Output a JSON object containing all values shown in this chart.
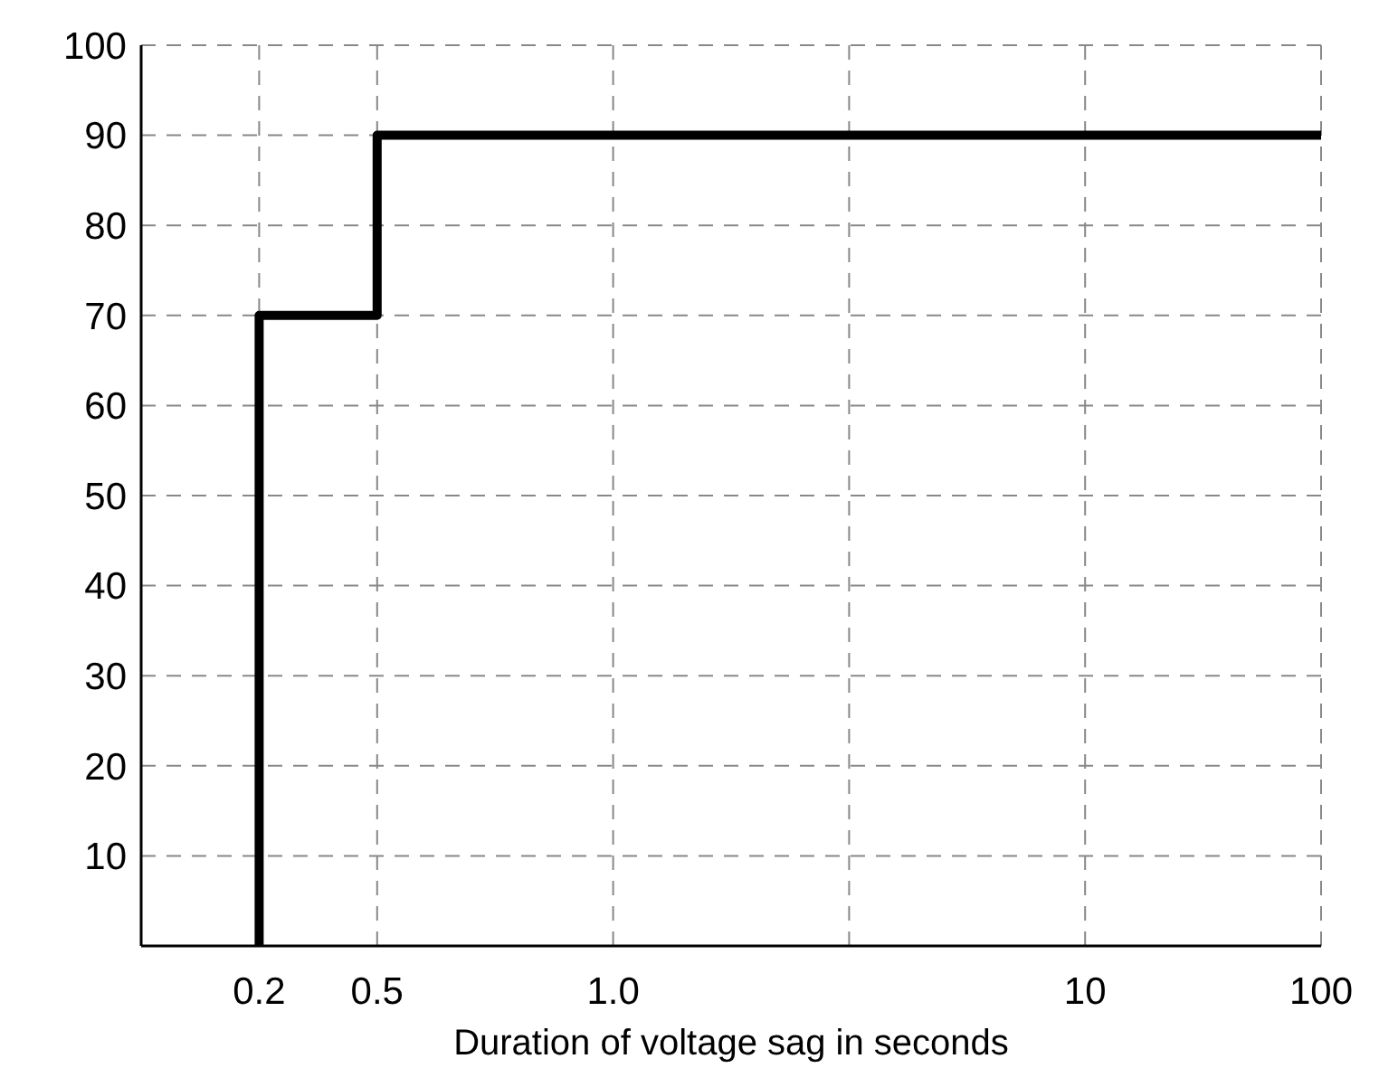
{
  "chart_data": {
    "type": "step",
    "xlabel": "Duration of voltage sag in seconds",
    "categories": [
      null,
      "0.2",
      "0.5",
      null,
      "1.0",
      null,
      null,
      null,
      "10",
      null,
      "100"
    ],
    "series": [
      {
        "color": "#000000",
        "x": [
          "0.2",
          "0.2",
          "0.5",
          "100"
        ],
        "values": [
          0,
          70,
          90,
          90
        ]
      }
    ],
    "ylim": [
      0,
      100
    ],
    "yticks": [
      10,
      20,
      30,
      40,
      50,
      60,
      70,
      80,
      90,
      100
    ],
    "grid": true,
    "line_style": "solid",
    "marker": "none"
  }
}
